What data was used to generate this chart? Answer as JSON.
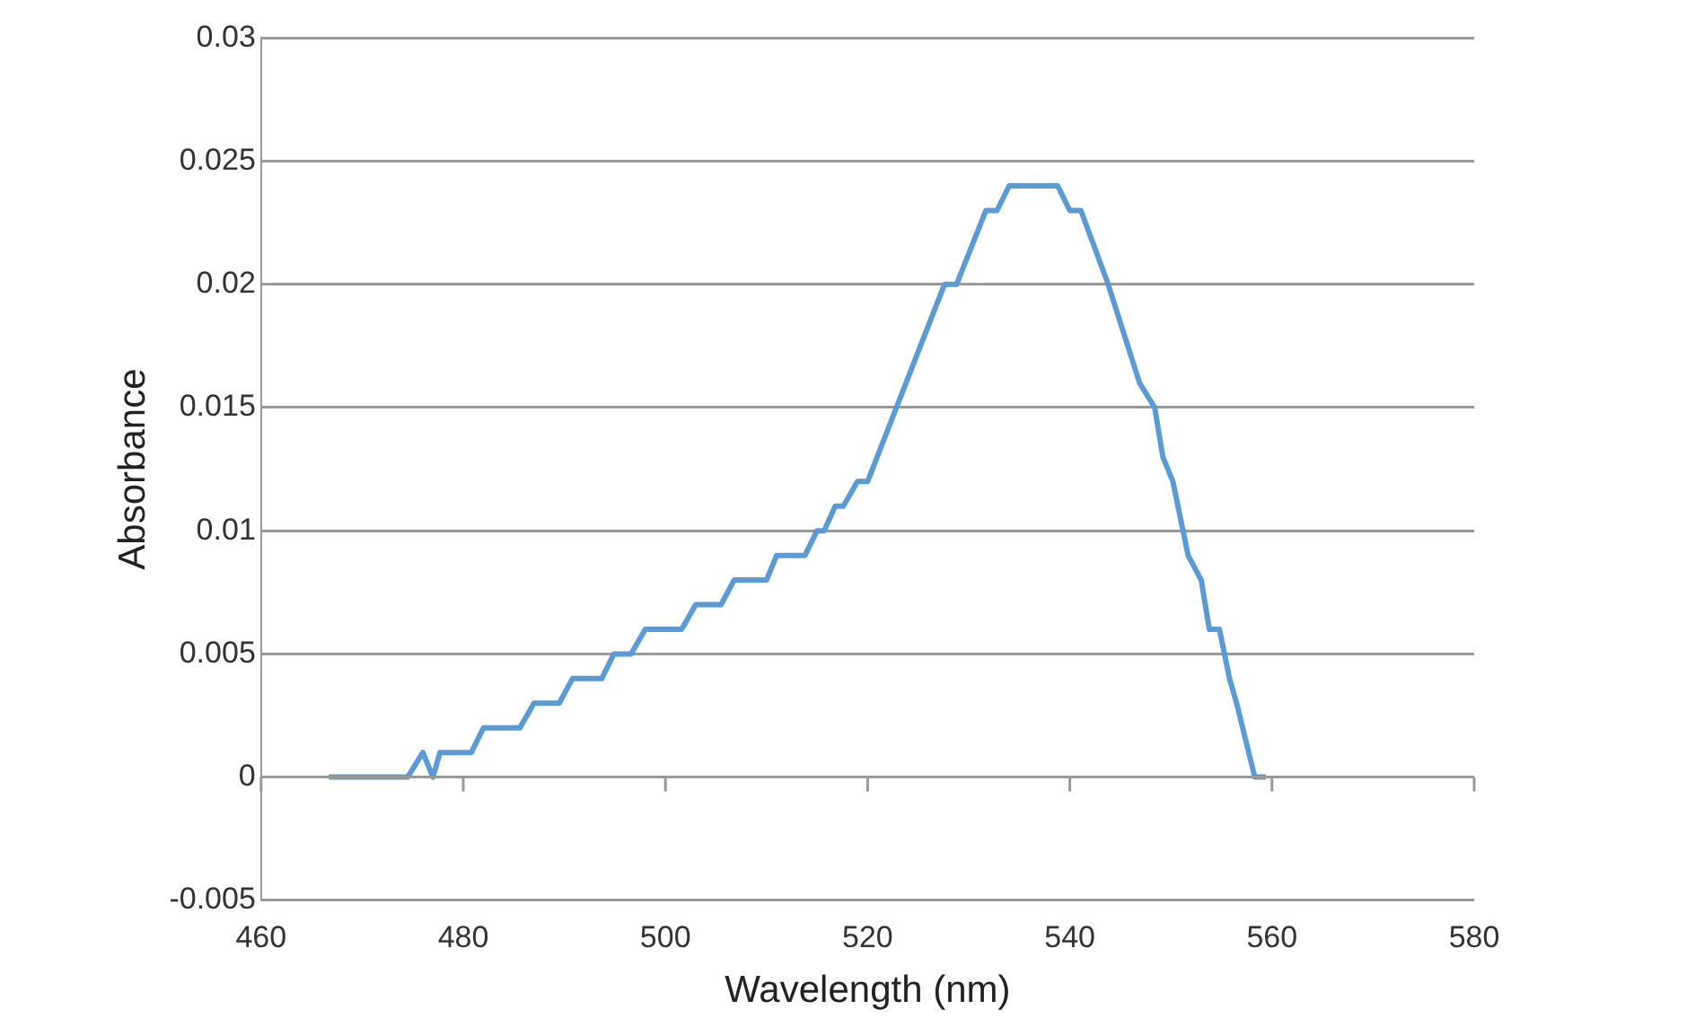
{
  "chart_data": {
    "type": "line",
    "xlabel": "Wavelength (nm)",
    "ylabel": "Absorbance",
    "xlim": [
      460,
      580
    ],
    "xticks": [
      460,
      480,
      500,
      520,
      540,
      560,
      580
    ],
    "ylim": [
      -0.005,
      0.03
    ],
    "yticks": [
      -0.005,
      0,
      0.005,
      0.01,
      0.015,
      0.02,
      0.025,
      0.03
    ],
    "grid": "y",
    "legend": false,
    "marker": "none",
    "line_style": "solid",
    "series": [
      {
        "color": "#5b9bd5",
        "x": [
          466.7,
          474.5,
          476,
          477,
          477.7,
          480.8,
          482,
          485.6,
          487,
          489.5,
          490.8,
          493.7,
          494.9,
          496.6,
          498,
          501.6,
          503,
          505.5,
          506.8,
          510,
          511,
          513.8,
          515,
          515.7,
          516.8,
          517.6,
          519,
          520,
          527.6,
          528.8,
          531.7,
          532.8,
          534,
          538.8,
          540,
          541.1,
          543.8,
          546.9,
          548.4,
          549.2,
          550.2,
          551.7,
          553,
          553.8,
          554.8,
          555.8,
          556.5,
          558.3,
          559.4
        ],
        "values": [
          0,
          0,
          0.001,
          0,
          0.001,
          0.001,
          0.002,
          0.002,
          0.003,
          0.003,
          0.004,
          0.004,
          0.005,
          0.005,
          0.006,
          0.006,
          0.007,
          0.007,
          0.008,
          0.008,
          0.009,
          0.009,
          0.01,
          0.01,
          0.011,
          0.011,
          0.012,
          0.012,
          0.02,
          0.02,
          0.023,
          0.023,
          0.024,
          0.024,
          0.023,
          0.023,
          0.02,
          0.016,
          0.015,
          0.013,
          0.012,
          0.009,
          0.008,
          0.006,
          0.006,
          0.004,
          0.003,
          0,
          0
        ]
      }
    ]
  }
}
